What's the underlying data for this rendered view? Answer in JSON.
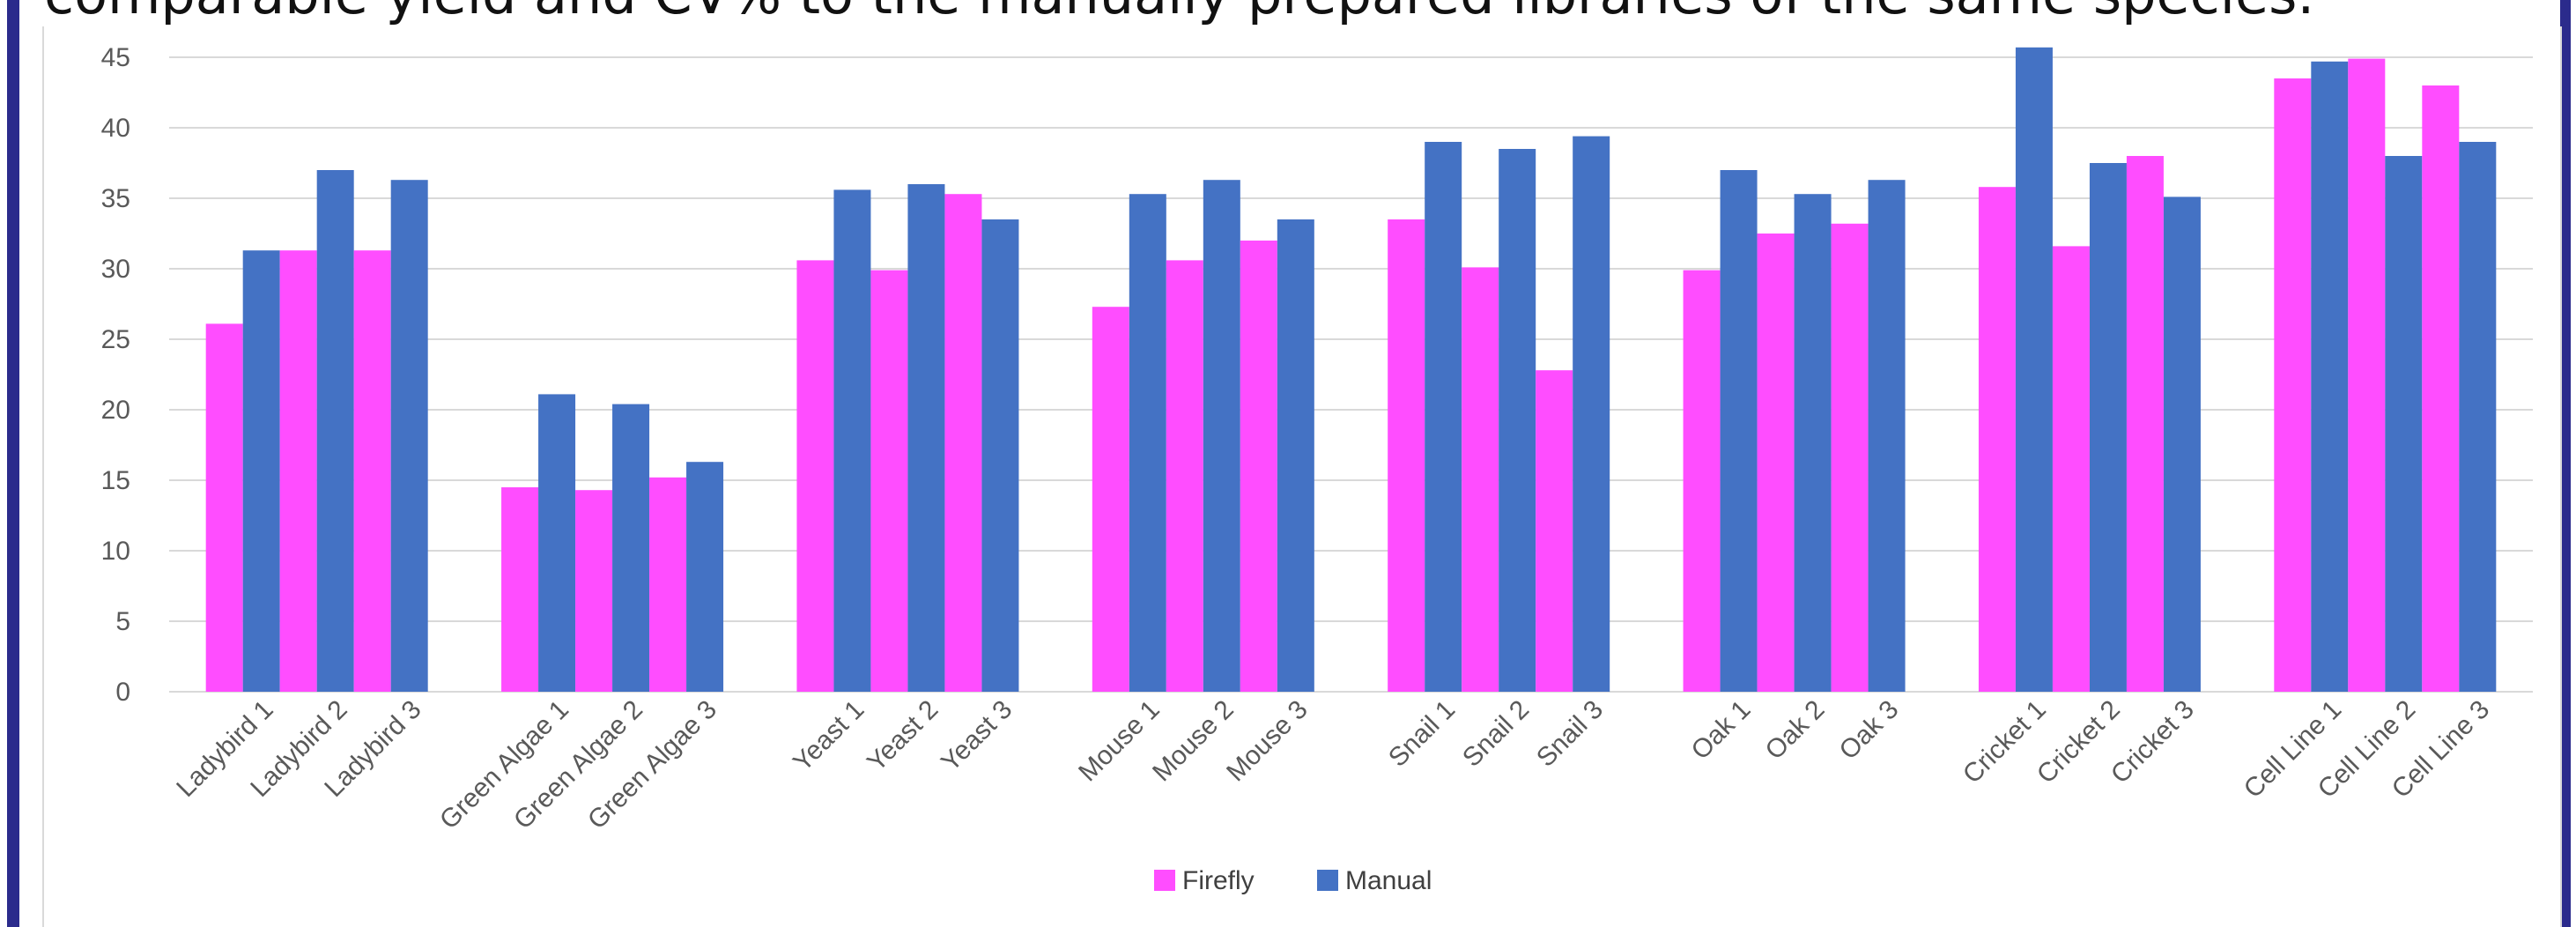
{
  "caption": "comparable yield and CV% to the manually prepared libraries of the same species.",
  "colors": {
    "border": "#2b2b8c",
    "grid": "#d9d9d9",
    "tick_text": "#595959",
    "legend_text": "#404040"
  },
  "chart_data": {
    "type": "bar",
    "categories": [
      "Ladybird 1",
      "Ladybird 2",
      "Ladybird 3",
      "Green Algae 1",
      "Green Algae 2",
      "Green Algae 3",
      "Yeast 1",
      "Yeast 2",
      "Yeast 3",
      "Mouse 1",
      "Mouse 2",
      "Mouse 3",
      "Snail 1",
      "Snail 2",
      "Snail 3",
      "Oak 1",
      "Oak 2",
      "Oak 3",
      "Cricket 1",
      "Cricket 2",
      "Cricket 3",
      "Cell Line 1",
      "Cell Line 2",
      "Cell Line 3"
    ],
    "groups": [
      [
        "Ladybird 1",
        "Ladybird 2",
        "Ladybird 3"
      ],
      [
        "Green Algae 1",
        "Green Algae 2",
        "Green Algae 3"
      ],
      [
        "Yeast 1",
        "Yeast 2",
        "Yeast 3"
      ],
      [
        "Mouse 1",
        "Mouse 2",
        "Mouse 3"
      ],
      [
        "Snail 1",
        "Snail 2",
        "Snail 3"
      ],
      [
        "Oak 1",
        "Oak 2",
        "Oak 3"
      ],
      [
        "Cricket 1",
        "Cricket 2",
        "Cricket 3"
      ],
      [
        "Cell Line 1",
        "Cell Line 2",
        "Cell Line 3"
      ]
    ],
    "series": [
      {
        "name": "Firefly",
        "color": "#ff4dff",
        "values": [
          26.1,
          31.3,
          31.3,
          14.5,
          14.3,
          15.2,
          30.6,
          29.9,
          35.3,
          27.3,
          30.6,
          32.0,
          33.5,
          30.1,
          22.8,
          29.9,
          32.5,
          33.2,
          35.8,
          31.6,
          38.0,
          43.5,
          44.9,
          43.0
        ]
      },
      {
        "name": "Manual",
        "color": "#4472c4",
        "values": [
          31.3,
          37.0,
          36.3,
          21.1,
          20.4,
          16.3,
          35.6,
          36.0,
          33.5,
          35.3,
          36.3,
          33.5,
          39.0,
          38.5,
          39.4,
          37.0,
          35.3,
          36.3,
          45.7,
          37.5,
          35.1,
          44.7,
          38.0,
          39.0
        ]
      }
    ],
    "yticks": [
      0,
      5,
      10,
      15,
      20,
      25,
      30,
      35,
      40,
      45
    ],
    "ylim": [
      0,
      45
    ],
    "grid": true,
    "legend_position": "bottom-center",
    "title": "",
    "xlabel": "",
    "ylabel": ""
  }
}
